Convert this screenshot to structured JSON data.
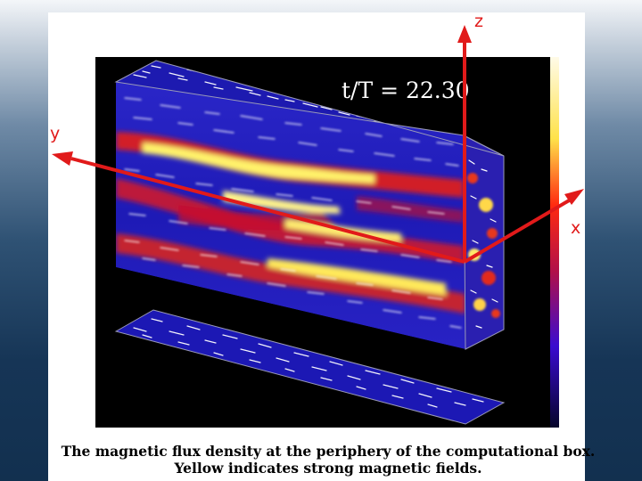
{
  "figure": {
    "time_label": "t/T  =  22.30",
    "axis_labels": {
      "z": "z",
      "y": "y",
      "x": "x"
    },
    "colors": {
      "axis_arrow": "#e11a1a",
      "background": "#000000",
      "strong_field": "#fff36a",
      "weak_field": "#1a1ad8"
    }
  },
  "caption": {
    "line1": "The magnetic flux density at the periphery of the computational box.",
    "line2": "Yellow indicates strong magnetic fields."
  }
}
